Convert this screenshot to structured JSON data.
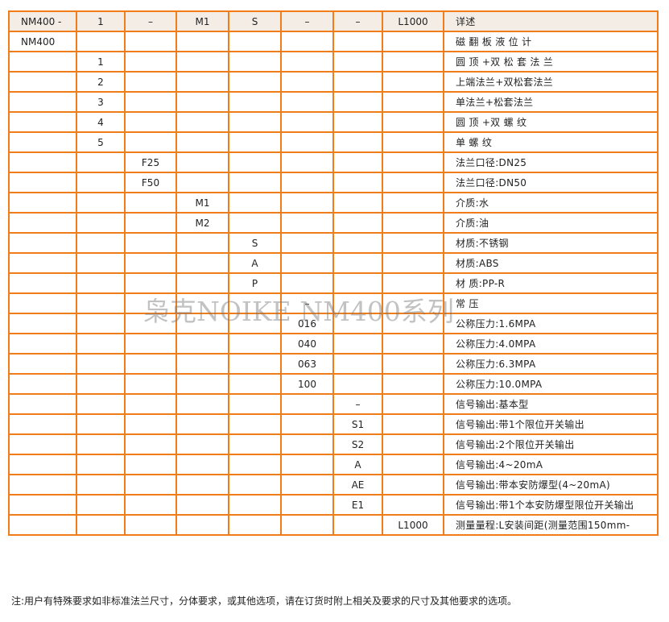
{
  "table": {
    "header": [
      "NM400 -",
      "1",
      "–",
      "M1",
      "S",
      "–",
      "–",
      "L1000",
      "详述"
    ],
    "rows": [
      [
        "NM400",
        "",
        "",
        "",
        "",
        "",
        "",
        "",
        "磁 翻 板 液 位 计"
      ],
      [
        "",
        "1",
        "",
        "",
        "",
        "",
        "",
        "",
        "圆 顶 +双 松 套 法 兰"
      ],
      [
        "",
        "2",
        "",
        "",
        "",
        "",
        "",
        "",
        "上端法兰+双松套法兰"
      ],
      [
        "",
        "3",
        "",
        "",
        "",
        "",
        "",
        "",
        "单法兰+松套法兰"
      ],
      [
        "",
        "4",
        "",
        "",
        "",
        "",
        "",
        "",
        "圆 顶 +双 螺 纹"
      ],
      [
        "",
        "5",
        "",
        "",
        "",
        "",
        "",
        "",
        "单 螺 纹"
      ],
      [
        "",
        "",
        "F25",
        "",
        "",
        "",
        "",
        "",
        "法兰口径:DN25"
      ],
      [
        "",
        "",
        "F50",
        "",
        "",
        "",
        "",
        "",
        "法兰口径:DN50"
      ],
      [
        "",
        "",
        "",
        "M1",
        "",
        "",
        "",
        "",
        "介质:水"
      ],
      [
        "",
        "",
        "",
        "M2",
        "",
        "",
        "",
        "",
        "介质:油"
      ],
      [
        "",
        "",
        "",
        "",
        "S",
        "",
        "",
        "",
        "材质:不锈钢"
      ],
      [
        "",
        "",
        "",
        "",
        "A",
        "",
        "",
        "",
        "材质:ABS"
      ],
      [
        "",
        "",
        "",
        "",
        "P",
        "",
        "",
        "",
        "材 质:PP-R"
      ],
      [
        "",
        "",
        "",
        "",
        "",
        "–",
        "",
        "",
        "常 压"
      ],
      [
        "",
        "",
        "",
        "",
        "",
        "016",
        "",
        "",
        "公称压力:1.6MPA"
      ],
      [
        "",
        "",
        "",
        "",
        "",
        "040",
        "",
        "",
        "公称压力:4.0MPA"
      ],
      [
        "",
        "",
        "",
        "",
        "",
        "063",
        "",
        "",
        "公称压力:6.3MPA"
      ],
      [
        "",
        "",
        "",
        "",
        "",
        "100",
        "",
        "",
        "公称压力:10.0MPA"
      ],
      [
        "",
        "",
        "",
        "",
        "",
        "",
        "–",
        "",
        "信号输出:基本型"
      ],
      [
        "",
        "",
        "",
        "",
        "",
        "",
        "S1",
        "",
        "信号输出:带1个限位开关输出"
      ],
      [
        "",
        "",
        "",
        "",
        "",
        "",
        "S2",
        "",
        "信号输出:2个限位开关输出"
      ],
      [
        "",
        "",
        "",
        "",
        "",
        "",
        "A",
        "",
        "信号输出:4~20mA"
      ],
      [
        "",
        "",
        "",
        "",
        "",
        "",
        "AE",
        "",
        "信号输出:带本安防爆型(4~20mA)"
      ],
      [
        "",
        "",
        "",
        "",
        "",
        "",
        "E1",
        "",
        "信号输出:带1个本安防爆型限位开关输出"
      ],
      [
        "",
        "",
        "",
        "",
        "",
        "",
        "",
        "L1000",
        "测量量程:L安装间距(测量范围150mm-"
      ]
    ]
  },
  "watermark": "枭克NOIKE  NM400系列",
  "note": "注:用户有特殊要求如非标准法兰尺寸，分体要求，或其他选项，请在订货时附上相关及要求的尺寸及其他要求的选项。",
  "colors": {
    "border": "#f07d1a",
    "header_bg": "#f3ede6"
  }
}
